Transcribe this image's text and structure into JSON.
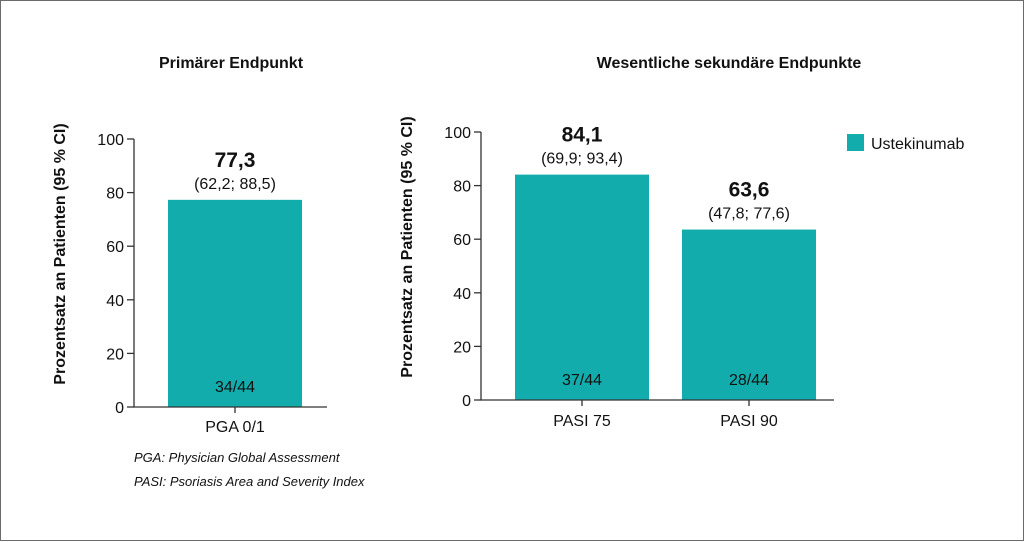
{
  "colors": {
    "bar": "#13acac",
    "axis": "#333333",
    "text": "#111111"
  },
  "legend": {
    "label": "Ustekinumab"
  },
  "footnotes": [
    "PGA: Physician Global Assessment",
    "PASI: Psoriasis Area and Severity Index"
  ],
  "chart_data": [
    {
      "type": "bar",
      "title": "Primärer Endpunkt",
      "ylabel": "Prozentsatz an Patienten (95 % CI)",
      "ylim": [
        0,
        100
      ],
      "yticks": [
        "0",
        "20",
        "40",
        "60",
        "80",
        "100"
      ],
      "categories": [
        "PGA 0/1"
      ],
      "series": [
        {
          "name": "Ustekinumab",
          "values": [
            77.3
          ],
          "value_labels": [
            "77,3"
          ],
          "ci_labels": [
            "(62,2; 88,5)"
          ],
          "counts": [
            "34/44"
          ]
        }
      ]
    },
    {
      "type": "bar",
      "title": "Wesentliche sekundäre Endpunkte",
      "ylabel": "Prozentsatz an Patienten (95 % CI)",
      "ylim": [
        0,
        100
      ],
      "yticks": [
        "0",
        "20",
        "40",
        "60",
        "80",
        "100"
      ],
      "categories": [
        "PASI 75",
        "PASI 90"
      ],
      "series": [
        {
          "name": "Ustekinumab",
          "values": [
            84.1,
            63.6
          ],
          "value_labels": [
            "84,1",
            "63,6"
          ],
          "ci_labels": [
            "(69,9; 93,4)",
            "(47,8; 77,6)"
          ],
          "counts": [
            "37/44",
            "28/44"
          ]
        }
      ]
    }
  ]
}
